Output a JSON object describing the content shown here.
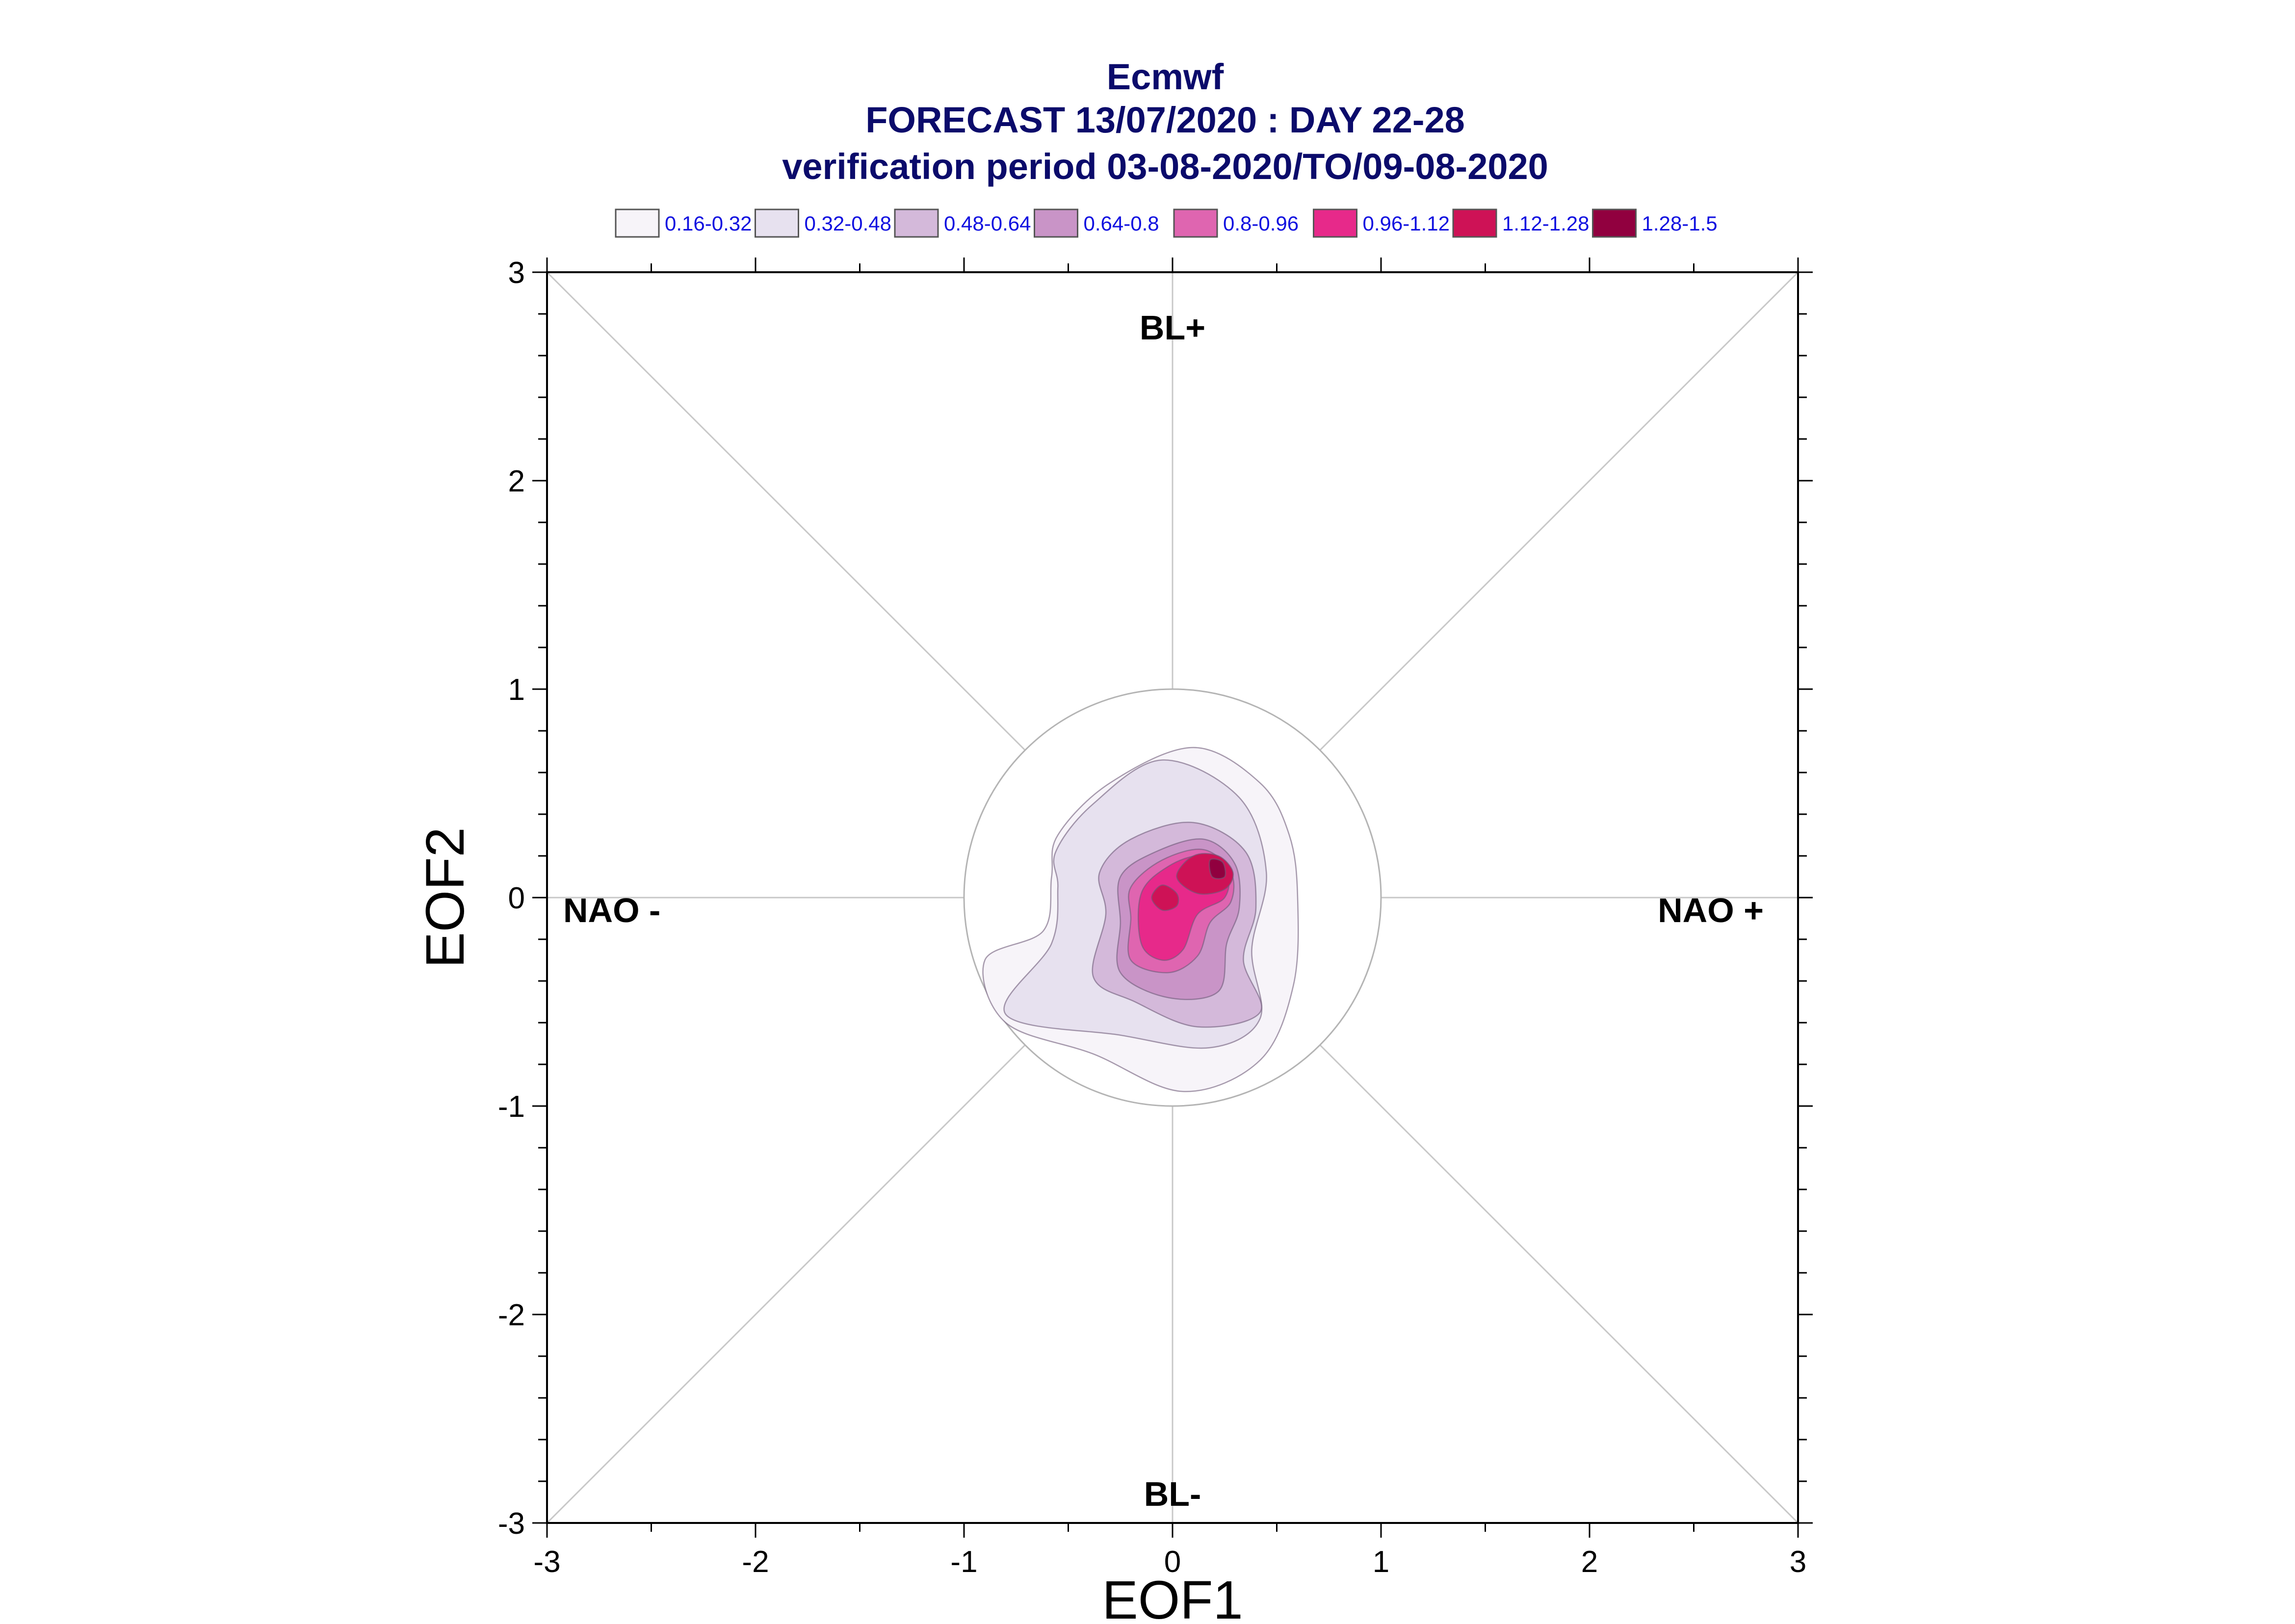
{
  "header": {
    "line1": "Ecmwf",
    "line2": "FORECAST 13/07/2020 : DAY 22-28",
    "line3": "verification period 03-08-2020/TO/09-08-2020",
    "color": "#0b0b6b"
  },
  "legend": {
    "text_color": "#1010e0",
    "items": [
      {
        "label": "0.16-0.32",
        "color": "#f7f4f9"
      },
      {
        "label": "0.32-0.48",
        "color": "#e7e1ef"
      },
      {
        "label": "0.48-0.64",
        "color": "#d4b9da"
      },
      {
        "label": "0.64-0.8",
        "color": "#c994c7"
      },
      {
        "label": "0.8-0.96",
        "color": "#df65b0"
      },
      {
        "label": "0.96-1.12",
        "color": "#e7298a"
      },
      {
        "label": "1.12-1.28",
        "color": "#ce1256"
      },
      {
        "label": "1.28-1.5",
        "color": "#91003f"
      }
    ]
  },
  "regimes": {
    "top": "BL+",
    "bottom": "BL-",
    "left": "NAO -",
    "right": "NAO +"
  },
  "chart_data": {
    "type": "contour",
    "xlabel": "EOF1",
    "ylabel": "EOF2",
    "xlim": [
      -3,
      3
    ],
    "ylim": [
      -3,
      3
    ],
    "x_ticks": [
      -3,
      -2,
      -1,
      0,
      1,
      2,
      3
    ],
    "y_ticks": [
      -3,
      -2,
      -1,
      0,
      1,
      2,
      3
    ],
    "reference_circle_radius": 1,
    "diagonals": true,
    "levels": [
      {
        "range": "0.16-0.32",
        "polygon": [
          [
            -0.55,
            0.3
          ],
          [
            -0.3,
            0.55
          ],
          [
            0.1,
            0.72
          ],
          [
            0.42,
            0.55
          ],
          [
            0.56,
            0.3
          ],
          [
            0.6,
            0.0
          ],
          [
            0.58,
            -0.42
          ],
          [
            0.42,
            -0.78
          ],
          [
            0.05,
            -0.93
          ],
          [
            -0.38,
            -0.75
          ],
          [
            -0.8,
            -0.6
          ],
          [
            -0.9,
            -0.3
          ],
          [
            -0.62,
            -0.16
          ],
          [
            -0.58,
            0.1
          ]
        ]
      },
      {
        "range": "0.32-0.48",
        "polygon": [
          [
            -0.56,
            0.22
          ],
          [
            -0.38,
            0.45
          ],
          [
            -0.05,
            0.66
          ],
          [
            0.32,
            0.48
          ],
          [
            0.45,
            0.12
          ],
          [
            0.38,
            -0.25
          ],
          [
            0.42,
            -0.58
          ],
          [
            0.18,
            -0.72
          ],
          [
            -0.25,
            -0.66
          ],
          [
            -0.8,
            -0.56
          ],
          [
            -0.58,
            -0.22
          ],
          [
            -0.55,
            0.05
          ]
        ]
      },
      {
        "range": "0.48-0.64",
        "polygon": [
          [
            -0.35,
            0.12
          ],
          [
            -0.2,
            0.28
          ],
          [
            0.1,
            0.36
          ],
          [
            0.35,
            0.22
          ],
          [
            0.4,
            -0.05
          ],
          [
            0.34,
            -0.3
          ],
          [
            0.42,
            -0.55
          ],
          [
            0.12,
            -0.62
          ],
          [
            -0.18,
            -0.5
          ],
          [
            -0.38,
            -0.38
          ],
          [
            -0.32,
            -0.08
          ]
        ]
      },
      {
        "range": "0.64-0.8",
        "polygon": [
          [
            -0.25,
            0.1
          ],
          [
            -0.08,
            0.22
          ],
          [
            0.15,
            0.28
          ],
          [
            0.3,
            0.16
          ],
          [
            0.32,
            -0.05
          ],
          [
            0.26,
            -0.22
          ],
          [
            0.22,
            -0.45
          ],
          [
            -0.02,
            -0.48
          ],
          [
            -0.25,
            -0.36
          ],
          [
            -0.25,
            -0.12
          ]
        ]
      },
      {
        "range": "0.8-0.96",
        "polygon": [
          [
            -0.2,
            0.05
          ],
          [
            -0.05,
            0.18
          ],
          [
            0.15,
            0.23
          ],
          [
            0.28,
            0.12
          ],
          [
            0.28,
            -0.02
          ],
          [
            0.18,
            -0.12
          ],
          [
            0.12,
            -0.28
          ],
          [
            -0.02,
            -0.36
          ],
          [
            -0.2,
            -0.3
          ],
          [
            -0.2,
            -0.1
          ]
        ]
      },
      {
        "range": "0.96-1.12",
        "polygon": [
          [
            -0.15,
            0.02
          ],
          [
            -0.02,
            0.15
          ],
          [
            0.14,
            0.2
          ],
          [
            0.26,
            0.12
          ],
          [
            0.25,
            0.0
          ],
          [
            0.12,
            -0.08
          ],
          [
            0.05,
            -0.25
          ],
          [
            -0.05,
            -0.3
          ],
          [
            -0.15,
            -0.22
          ]
        ]
      },
      {
        "range": "1.12-1.28",
        "polygon": [
          [
            0.02,
            0.1
          ],
          [
            0.1,
            0.2
          ],
          [
            0.22,
            0.2
          ],
          [
            0.29,
            0.12
          ],
          [
            0.25,
            0.04
          ],
          [
            0.12,
            0.02
          ]
        ]
      },
      {
        "range": "1.12-1.28",
        "polygon": [
          [
            -0.05,
            0.06
          ],
          [
            0.02,
            0.02
          ],
          [
            0.02,
            -0.04
          ],
          [
            -0.05,
            -0.06
          ],
          [
            -0.1,
            0.0
          ]
        ]
      },
      {
        "range": "1.28-1.5",
        "polygon": [
          [
            0.18,
            0.18
          ],
          [
            0.24,
            0.17
          ],
          [
            0.25,
            0.1
          ],
          [
            0.19,
            0.1
          ]
        ]
      }
    ]
  }
}
